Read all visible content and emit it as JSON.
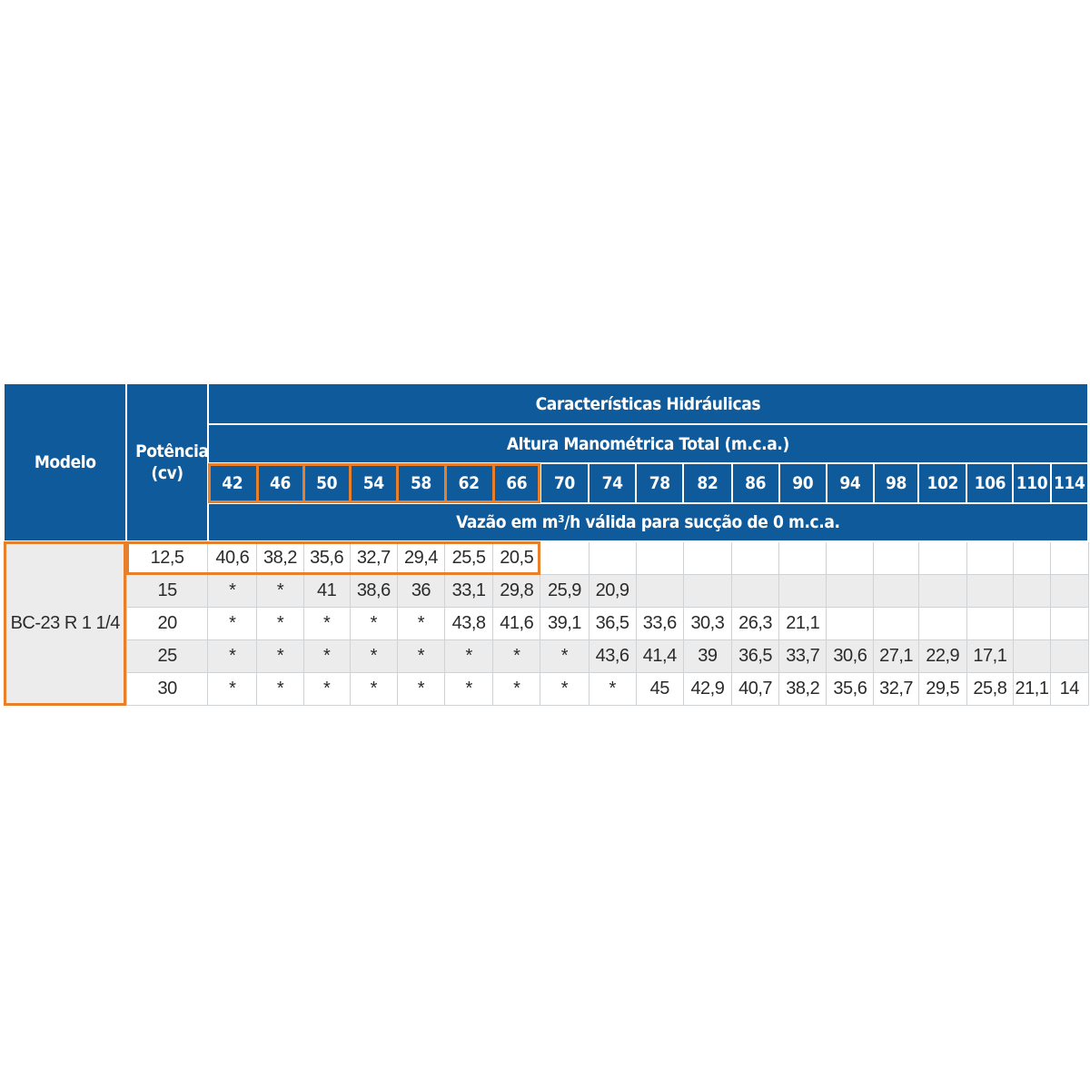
{
  "table": {
    "header": {
      "modelo": "Modelo",
      "potencia": "Potência (cv)",
      "caracteristicas": "Características Hidráulicas",
      "altura": "Altura Manométrica Total (m.c.a.)",
      "vazao": "Vazão em m³/h válida para sucção de 0 m.c.a."
    },
    "heights": [
      "42",
      "46",
      "50",
      "54",
      "58",
      "62",
      "66",
      "70",
      "74",
      "78",
      "82",
      "86",
      "90",
      "94",
      "98",
      "102",
      "106",
      "110",
      "114"
    ],
    "model": "BC-23 R 1 1/4",
    "rows": [
      {
        "potencia": "12,5",
        "values": [
          "40,6",
          "38,2",
          "35,6",
          "32,7",
          "29,4",
          "25,5",
          "20,5",
          "",
          "",
          "",
          "",
          "",
          "",
          "",
          "",
          "",
          "",
          "",
          ""
        ]
      },
      {
        "potencia": "15",
        "values": [
          "*",
          "*",
          "41",
          "38,6",
          "36",
          "33,1",
          "29,8",
          "25,9",
          "20,9",
          "",
          "",
          "",
          "",
          "",
          "",
          "",
          "",
          "",
          ""
        ]
      },
      {
        "potencia": "20",
        "values": [
          "*",
          "*",
          "*",
          "*",
          "*",
          "43,8",
          "41,6",
          "39,1",
          "36,5",
          "33,6",
          "30,3",
          "26,3",
          "21,1",
          "",
          "",
          "",
          "",
          "",
          ""
        ]
      },
      {
        "potencia": "25",
        "values": [
          "*",
          "*",
          "*",
          "*",
          "*",
          "*",
          "*",
          "*",
          "43,6",
          "41,4",
          "39",
          "36,5",
          "33,7",
          "30,6",
          "27,1",
          "22,9",
          "17,1",
          "",
          ""
        ]
      },
      {
        "potencia": "30",
        "values": [
          "*",
          "*",
          "*",
          "*",
          "*",
          "*",
          "*",
          "*",
          "*",
          "45",
          "42,9",
          "40,7",
          "38,2",
          "35,6",
          "32,7",
          "29,5",
          "25,8",
          "21,1",
          "14"
        ]
      }
    ],
    "highlight_color": "#e87f2a",
    "header_color": "#0f5a9a"
  }
}
